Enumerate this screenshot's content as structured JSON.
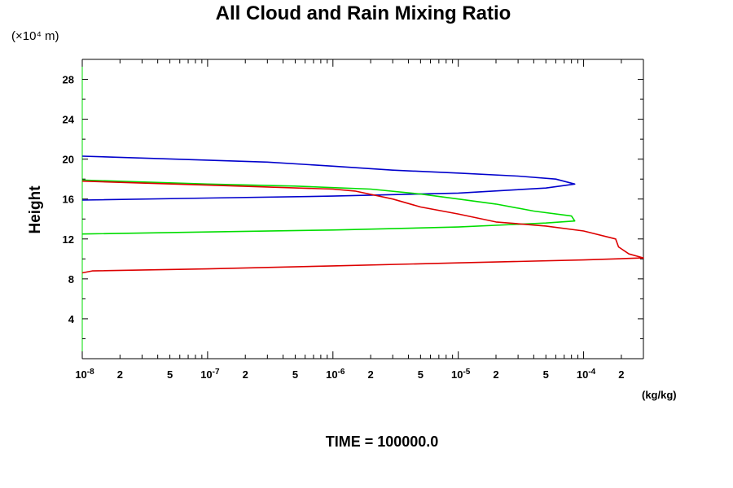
{
  "chart_data": {
    "type": "line",
    "title": "All Cloud and Rain Mixing Ratio",
    "ylabel": "Height",
    "y_unit": "(×10⁴ m)",
    "xlabel_unit": "(kg/kg)",
    "footer": "TIME = 100000.0",
    "x_scale": "log",
    "xlim": [
      1e-08,
      0.0003
    ],
    "ylim": [
      0,
      30
    ],
    "y_ticks": [
      "4",
      "8",
      "12",
      "16",
      "20",
      "24",
      "28"
    ],
    "x_tick_labels": [
      {
        "value": 1e-08,
        "mantissa": "10",
        "exp": "-8"
      },
      {
        "value": 2e-08,
        "mantissa": "2",
        "exp": ""
      },
      {
        "value": 5e-08,
        "mantissa": "5",
        "exp": ""
      },
      {
        "value": 1e-07,
        "mantissa": "10",
        "exp": "-7"
      },
      {
        "value": 2e-07,
        "mantissa": "2",
        "exp": ""
      },
      {
        "value": 5e-07,
        "mantissa": "5",
        "exp": ""
      },
      {
        "value": 1e-06,
        "mantissa": "10",
        "exp": "-6"
      },
      {
        "value": 2e-06,
        "mantissa": "2",
        "exp": ""
      },
      {
        "value": 5e-06,
        "mantissa": "5",
        "exp": ""
      },
      {
        "value": 1e-05,
        "mantissa": "10",
        "exp": "-5"
      },
      {
        "value": 2e-05,
        "mantissa": "2",
        "exp": ""
      },
      {
        "value": 5e-05,
        "mantissa": "5",
        "exp": ""
      },
      {
        "value": 0.0001,
        "mantissa": "10",
        "exp": "-4"
      },
      {
        "value": 0.0002,
        "mantissa": "2",
        "exp": ""
      }
    ],
    "grid": false,
    "series": [
      {
        "color": "#0000cc",
        "points": [
          [
            1e-08,
            15.9
          ],
          [
            1e-07,
            16.1
          ],
          [
            1e-06,
            16.3
          ],
          [
            1e-05,
            16.6
          ],
          [
            5e-05,
            17.1
          ],
          [
            8.5e-05,
            17.5
          ],
          [
            6e-05,
            18.0
          ],
          [
            3e-05,
            18.3
          ],
          [
            1e-05,
            18.6
          ],
          [
            3e-06,
            18.9
          ],
          [
            1e-06,
            19.3
          ],
          [
            3e-07,
            19.7
          ],
          [
            1e-07,
            19.9
          ],
          [
            1e-08,
            20.3
          ]
        ]
      },
      {
        "color": "#00dd00",
        "points": [
          [
            1e-08,
            12.5
          ],
          [
            1e-07,
            12.7
          ],
          [
            1e-06,
            12.9
          ],
          [
            1e-05,
            13.2
          ],
          [
            5e-05,
            13.6
          ],
          [
            8.5e-05,
            13.8
          ],
          [
            8e-05,
            14.3
          ],
          [
            4e-05,
            14.8
          ],
          [
            2e-05,
            15.5
          ],
          [
            1e-05,
            16.0
          ],
          [
            5e-06,
            16.5
          ],
          [
            2e-06,
            17.0
          ],
          [
            5e-07,
            17.3
          ],
          [
            1e-07,
            17.5
          ],
          [
            1e-08,
            17.9
          ]
        ]
      },
      {
        "color": "#dd0000",
        "points": [
          [
            1e-08,
            8.6
          ],
          [
            1.2e-08,
            8.8
          ],
          [
            1e-07,
            9.0
          ],
          [
            1e-06,
            9.3
          ],
          [
            1e-05,
            9.6
          ],
          [
            0.0001,
            9.9
          ],
          [
            0.0003,
            10.1
          ],
          [
            0.00023,
            10.5
          ],
          [
            0.00019,
            11.2
          ],
          [
            0.00018,
            12.0
          ],
          [
            0.0001,
            12.8
          ],
          [
            5e-05,
            13.3
          ],
          [
            2e-05,
            13.7
          ],
          [
            1e-05,
            14.5
          ],
          [
            5e-06,
            15.2
          ],
          [
            3e-06,
            16.0
          ],
          [
            1.5e-06,
            16.8
          ],
          [
            1e-06,
            17.0
          ],
          [
            1e-07,
            17.4
          ],
          [
            3e-08,
            17.6
          ],
          [
            1e-08,
            17.8
          ]
        ]
      }
    ]
  }
}
